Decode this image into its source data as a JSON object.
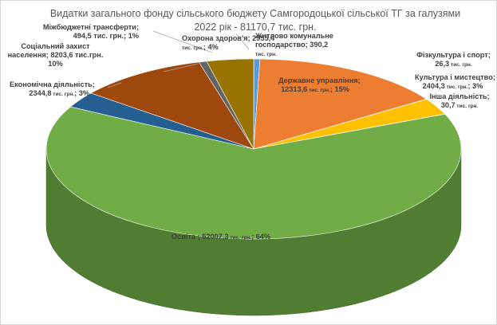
{
  "chart_data": {
    "type": "pie",
    "title": "Видатки загального фонду сільського бюджету Самгородоцької сільської ТГ за галузями 2022 рік - 81170,7 тис. грн.",
    "unit": "тис. грн.",
    "total": 81170.7,
    "slices": [
      {
        "name": "Житлово комунальне господарство",
        "value": 390.2,
        "percent": null,
        "color": "#5b9bd5"
      },
      {
        "name": "Державне управління",
        "value": 12313.6,
        "percent": 15,
        "color": "#ed7d31"
      },
      {
        "name": "Фізкультура і спорт",
        "value": 26.3,
        "percent": null,
        "color": "#a5a5a5"
      },
      {
        "name": "Культура і мистецтво",
        "value": 2404.3,
        "percent": 3,
        "color": "#ffc000"
      },
      {
        "name": "Інша діяльність",
        "value": 30.7,
        "percent": null,
        "color": "#4472c4"
      },
      {
        "name": "Освіта",
        "value": 52007.3,
        "percent": 64,
        "color": "#70ad47"
      },
      {
        "name": "Економічна діяльність",
        "value": 2344.8,
        "percent": 3,
        "color": "#255e91"
      },
      {
        "name": "Соціальний захист населення",
        "value": 8203.6,
        "percent": 10,
        "color": "#9e480e"
      },
      {
        "name": "Міжбюджетні трансферти",
        "value": 494.5,
        "percent": 1,
        "color": "#636363"
      },
      {
        "name": "Охорона здоров'я",
        "value": 2955.4,
        "percent": 4,
        "color": "#997300"
      }
    ],
    "labels": [
      {
        "lines": [
          "Житлово комунальне",
          "господарство; 390,2"
        ],
        "unit_line": "тис. грн."
      },
      {
        "lines": [
          "Державне управління;",
          "12313,6"
        ],
        "unit_inline": "тис. грн.",
        "suffix": "; 15%"
      },
      {
        "lines": [
          "Фізкультура і спорт;",
          "26,3"
        ],
        "unit_inline": "тис. грн."
      },
      {
        "lines": [
          "Культура і мистецтво;",
          "2404,3"
        ],
        "unit_inline": "тис. грн.",
        "suffix": "; 3%"
      },
      {
        "lines": [
          "Інша діяльність;",
          "30,7"
        ],
        "unit_inline": "тис. грн."
      },
      {
        "lines": [
          "Освіта ; 52007,3"
        ],
        "unit_inline": "тис. грн.",
        "suffix": "; 64%"
      },
      {
        "lines": [
          "Економічна діяльність;",
          "2344,8"
        ],
        "unit_inline": "тис. грн.",
        "suffix": "; 3%"
      },
      {
        "lines": [
          "Соціальний захист",
          "населення; 8203,6 тис.грн.",
          "10%"
        ]
      },
      {
        "lines": [
          "Міжбюджетні трансферти;",
          "494,5 тис. грн.; 1%"
        ]
      },
      {
        "lines": [
          "Охорона здоров'я; 2955,4"
        ],
        "unit_line": "тис. грн.",
        "suffix": "; 4%"
      }
    ]
  }
}
